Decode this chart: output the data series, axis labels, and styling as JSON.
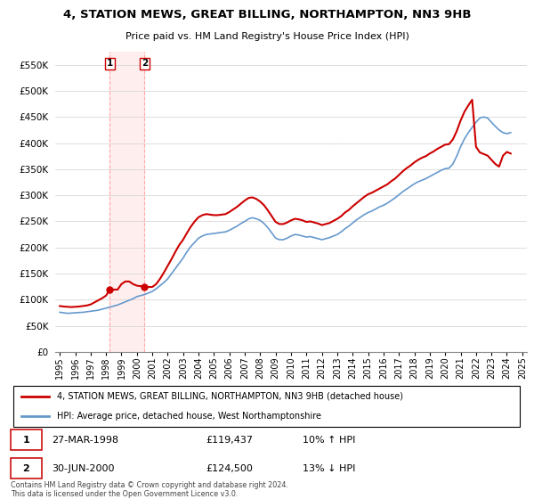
{
  "title": "4, STATION MEWS, GREAT BILLING, NORTHAMPTON, NN3 9HB",
  "subtitle": "Price paid vs. HM Land Registry's House Price Index (HPI)",
  "legend_line1": "4, STATION MEWS, GREAT BILLING, NORTHAMPTON, NN3 9HB (detached house)",
  "legend_line2": "HPI: Average price, detached house, West Northamptonshire",
  "footer": "Contains HM Land Registry data © Crown copyright and database right 2024.\nThis data is licensed under the Open Government Licence v3.0.",
  "transaction1": {
    "num": "1",
    "date": "27-MAR-1998",
    "price": "£119,437",
    "hpi": "10% ↑ HPI"
  },
  "transaction2": {
    "num": "2",
    "date": "30-JUN-2000",
    "price": "£124,500",
    "hpi": "13% ↓ HPI"
  },
  "red_color": "#cc0000",
  "blue_color": "#6699cc",
  "marker1_date": 1998.23,
  "marker1_value": 119437,
  "marker2_date": 2000.5,
  "marker2_value": 124500,
  "ylim": [
    0,
    575000
  ],
  "yticks": [
    0,
    50000,
    100000,
    150000,
    200000,
    250000,
    300000,
    350000,
    400000,
    450000,
    500000,
    550000
  ],
  "hpi_dates": [
    1995.0,
    1995.25,
    1995.5,
    1995.75,
    1996.0,
    1996.25,
    1996.5,
    1996.75,
    1997.0,
    1997.25,
    1997.5,
    1997.75,
    1998.0,
    1998.25,
    1998.5,
    1998.75,
    1999.0,
    1999.25,
    1999.5,
    1999.75,
    2000.0,
    2000.25,
    2000.5,
    2000.75,
    2001.0,
    2001.25,
    2001.5,
    2001.75,
    2002.0,
    2002.25,
    2002.5,
    2002.75,
    2003.0,
    2003.25,
    2003.5,
    2003.75,
    2004.0,
    2004.25,
    2004.5,
    2004.75,
    2005.0,
    2005.25,
    2005.5,
    2005.75,
    2006.0,
    2006.25,
    2006.5,
    2006.75,
    2007.0,
    2007.25,
    2007.5,
    2007.75,
    2008.0,
    2008.25,
    2008.5,
    2008.75,
    2009.0,
    2009.25,
    2009.5,
    2009.75,
    2010.0,
    2010.25,
    2010.5,
    2010.75,
    2011.0,
    2011.25,
    2011.5,
    2011.75,
    2012.0,
    2012.25,
    2012.5,
    2012.75,
    2013.0,
    2013.25,
    2013.5,
    2013.75,
    2014.0,
    2014.25,
    2014.5,
    2014.75,
    2015.0,
    2015.25,
    2015.5,
    2015.75,
    2016.0,
    2016.25,
    2016.5,
    2016.75,
    2017.0,
    2017.25,
    2017.5,
    2017.75,
    2018.0,
    2018.25,
    2018.5,
    2018.75,
    2019.0,
    2019.25,
    2019.5,
    2019.75,
    2020.0,
    2020.25,
    2020.5,
    2020.75,
    2021.0,
    2021.25,
    2021.5,
    2021.75,
    2022.0,
    2022.25,
    2022.5,
    2022.75,
    2023.0,
    2023.25,
    2023.5,
    2023.75,
    2024.0,
    2024.25
  ],
  "hpi_values": [
    76000,
    75000,
    74000,
    74500,
    75000,
    75500,
    76000,
    77000,
    78000,
    79000,
    80000,
    82000,
    84000,
    86000,
    88000,
    90000,
    93000,
    96000,
    99000,
    102000,
    106000,
    108000,
    110000,
    113000,
    116000,
    121000,
    127000,
    133000,
    140000,
    150000,
    160000,
    170000,
    180000,
    192000,
    202000,
    210000,
    218000,
    222000,
    225000,
    226000,
    227000,
    228000,
    229000,
    230000,
    233000,
    237000,
    241000,
    246000,
    250000,
    255000,
    257000,
    255000,
    252000,
    246000,
    238000,
    228000,
    218000,
    215000,
    215000,
    218000,
    222000,
    225000,
    224000,
    222000,
    220000,
    221000,
    219000,
    217000,
    215000,
    217000,
    219000,
    222000,
    225000,
    230000,
    236000,
    241000,
    247000,
    253000,
    258000,
    263000,
    267000,
    270000,
    274000,
    278000,
    281000,
    285000,
    290000,
    295000,
    301000,
    307000,
    312000,
    317000,
    322000,
    326000,
    329000,
    332000,
    336000,
    340000,
    344000,
    348000,
    351000,
    352000,
    360000,
    375000,
    393000,
    408000,
    420000,
    430000,
    440000,
    448000,
    450000,
    448000,
    440000,
    432000,
    425000,
    420000,
    418000,
    420000
  ],
  "price_dates": [
    1995.0,
    1995.25,
    1995.5,
    1995.75,
    1996.0,
    1996.25,
    1996.5,
    1996.75,
    1997.0,
    1997.25,
    1997.5,
    1997.75,
    1998.0,
    1998.25,
    1998.5,
    1998.75,
    1999.0,
    1999.25,
    1999.5,
    1999.75,
    2000.0,
    2000.25,
    2000.5,
    2000.75,
    2001.0,
    2001.25,
    2001.5,
    2001.75,
    2002.0,
    2002.25,
    2002.5,
    2002.75,
    2003.0,
    2003.25,
    2003.5,
    2003.75,
    2004.0,
    2004.25,
    2004.5,
    2004.75,
    2005.0,
    2005.25,
    2005.5,
    2005.75,
    2006.0,
    2006.25,
    2006.5,
    2006.75,
    2007.0,
    2007.25,
    2007.5,
    2007.75,
    2008.0,
    2008.25,
    2008.5,
    2008.75,
    2009.0,
    2009.25,
    2009.5,
    2009.75,
    2010.0,
    2010.25,
    2010.5,
    2010.75,
    2011.0,
    2011.25,
    2011.5,
    2011.75,
    2012.0,
    2012.25,
    2012.5,
    2012.75,
    2013.0,
    2013.25,
    2013.5,
    2013.75,
    2014.0,
    2014.25,
    2014.5,
    2014.75,
    2015.0,
    2015.25,
    2015.5,
    2015.75,
    2016.0,
    2016.25,
    2016.5,
    2016.75,
    2017.0,
    2017.25,
    2017.5,
    2017.75,
    2018.0,
    2018.25,
    2018.5,
    2018.75,
    2019.0,
    2019.25,
    2019.5,
    2019.75,
    2020.0,
    2020.25,
    2020.5,
    2020.75,
    2021.0,
    2021.25,
    2021.5,
    2021.75,
    2022.0,
    2022.25,
    2022.5,
    2022.75,
    2023.0,
    2023.25,
    2023.5,
    2023.75,
    2024.0,
    2024.25
  ],
  "price_values": [
    88000,
    87000,
    86500,
    86000,
    86500,
    87000,
    88000,
    89000,
    91000,
    95000,
    99000,
    103000,
    108000,
    119437,
    119437,
    119437,
    130000,
    135000,
    135000,
    130000,
    127000,
    126000,
    124500,
    124500,
    124500,
    130000,
    140000,
    152000,
    165000,
    178000,
    192000,
    205000,
    215000,
    228000,
    240000,
    250000,
    258000,
    262000,
    264000,
    263000,
    262000,
    262000,
    263000,
    264000,
    268000,
    273000,
    278000,
    284000,
    290000,
    295000,
    296000,
    293000,
    288000,
    281000,
    271000,
    260000,
    249000,
    245000,
    245000,
    248000,
    252000,
    255000,
    254000,
    252000,
    249000,
    250000,
    248000,
    246000,
    243000,
    245000,
    247000,
    251000,
    255000,
    260000,
    267000,
    272000,
    279000,
    285000,
    291000,
    297000,
    302000,
    305000,
    309000,
    313000,
    317000,
    321000,
    327000,
    332000,
    339000,
    346000,
    352000,
    357000,
    363000,
    368000,
    372000,
    375000,
    380000,
    384000,
    389000,
    393000,
    397000,
    398000,
    407000,
    423000,
    443000,
    460000,
    472000,
    483000,
    393000,
    382000,
    379000,
    376000,
    368000,
    360000,
    355000,
    376000,
    383000,
    380000
  ],
  "xtick_years": [
    1995,
    1996,
    1997,
    1998,
    1999,
    2000,
    2001,
    2002,
    2003,
    2004,
    2005,
    2006,
    2007,
    2008,
    2009,
    2010,
    2011,
    2012,
    2013,
    2014,
    2015,
    2016,
    2017,
    2018,
    2019,
    2020,
    2021,
    2022,
    2023,
    2024,
    2025
  ],
  "xlim": [
    1994.7,
    2025.3
  ]
}
